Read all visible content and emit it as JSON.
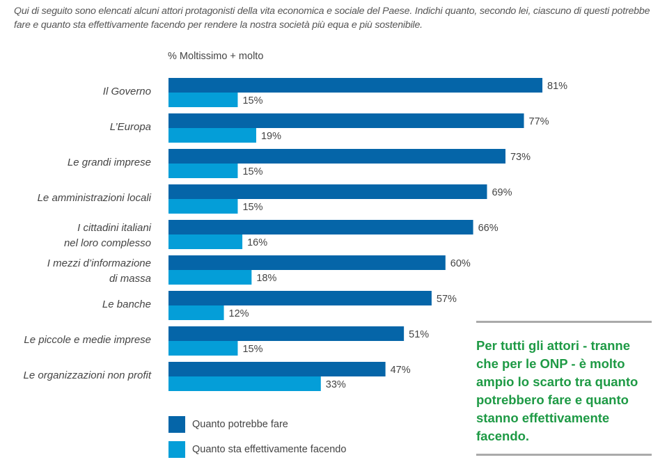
{
  "question": "Qui di seguito sono elencati alcuni attori protagonisti della vita economica e sociale del Paese. Indichi quanto, secondo lei, ciascuno di questi potrebbe fare e quanto sta effettivamente facendo per rendere la nostra società più equa e più sostenibile.",
  "callout": {
    "text": "Per tutti gli attori - tranne che per le ONP - è molto ampio lo scarto tra quanto potrebbero fare e quanto stanno effettivamente facendo.",
    "color": "#1e9a45"
  },
  "chart_data": {
    "type": "bar",
    "orientation": "horizontal",
    "title": "",
    "subtitle": "% Moltissimo + molto",
    "xlabel": "",
    "ylabel": "",
    "xlim": [
      0,
      100
    ],
    "grid": false,
    "legend_position": "bottom-left",
    "categories": [
      [
        "Il Governo"
      ],
      [
        "L’Europa"
      ],
      [
        "Le grandi imprese"
      ],
      [
        "Le amministrazioni locali"
      ],
      [
        "I cittadini italiani",
        "nel loro complesso"
      ],
      [
        "I mezzi d’informazione",
        "di massa"
      ],
      [
        "Le banche"
      ],
      [
        "Le piccole e medie imprese"
      ],
      [
        "Le organizzazioni non profit"
      ]
    ],
    "series": [
      {
        "name": "Quanto potrebbe fare",
        "color": "#0565a8",
        "values": [
          81,
          77,
          73,
          69,
          66,
          60,
          57,
          51,
          47
        ]
      },
      {
        "name": "Quanto sta effettivamente facendo",
        "color": "#049ed8",
        "values": [
          15,
          19,
          15,
          15,
          16,
          18,
          12,
          15,
          33
        ]
      }
    ],
    "value_suffix": "%"
  }
}
